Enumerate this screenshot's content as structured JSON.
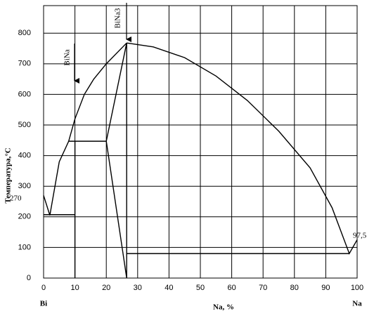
{
  "chart_data": {
    "type": "line",
    "x_label": "Na, %",
    "y_label": "Температура,°С",
    "left_element": "Bi",
    "right_element": "Na",
    "annotations": [
      "270",
      "97,5",
      "BiNa",
      "BiNa3"
    ],
    "xlim": [
      0,
      100
    ],
    "xticks": [
      0,
      10,
      20,
      30,
      40,
      50,
      60,
      70,
      80,
      90,
      100
    ],
    "ylim": [
      0,
      890
    ],
    "yticks": [
      0,
      100,
      200,
      300,
      400,
      500,
      600,
      700,
      800
    ],
    "grid": true,
    "series": [
      {
        "color": "#000000",
        "x": [
          0,
          2,
          5,
          8,
          10,
          13,
          16,
          20,
          26.5
        ],
        "values": [
          270,
          205,
          380,
          447,
          520,
          600,
          650,
          700,
          768
        ]
      },
      {
        "color": "#000000",
        "x": [
          0,
          10
        ],
        "values": [
          207,
          207
        ]
      },
      {
        "color": "#000000",
        "x": [
          10,
          10
        ],
        "values": [
          447,
          0
        ]
      },
      {
        "color": "#000000",
        "x": [
          8,
          20
        ],
        "values": [
          447,
          447
        ]
      },
      {
        "color": "#000000",
        "x": [
          20,
          26.5
        ],
        "values": [
          447,
          768
        ]
      },
      {
        "color": "#000000",
        "x": [
          20,
          26.5
        ],
        "values": [
          447,
          0
        ]
      },
      {
        "color": "#000000",
        "x": [
          26.5,
          26.5
        ],
        "values": [
          768,
          0
        ]
      },
      {
        "color": "#000000",
        "x": [
          26.5,
          97.5
        ],
        "values": [
          80,
          80
        ]
      },
      {
        "color": "#000000",
        "x": [
          26.5,
          35,
          45,
          55,
          65,
          75,
          85,
          92,
          97.5,
          100
        ],
        "values": [
          768,
          755,
          720,
          660,
          580,
          480,
          360,
          230,
          80,
          125
        ]
      }
    ]
  }
}
